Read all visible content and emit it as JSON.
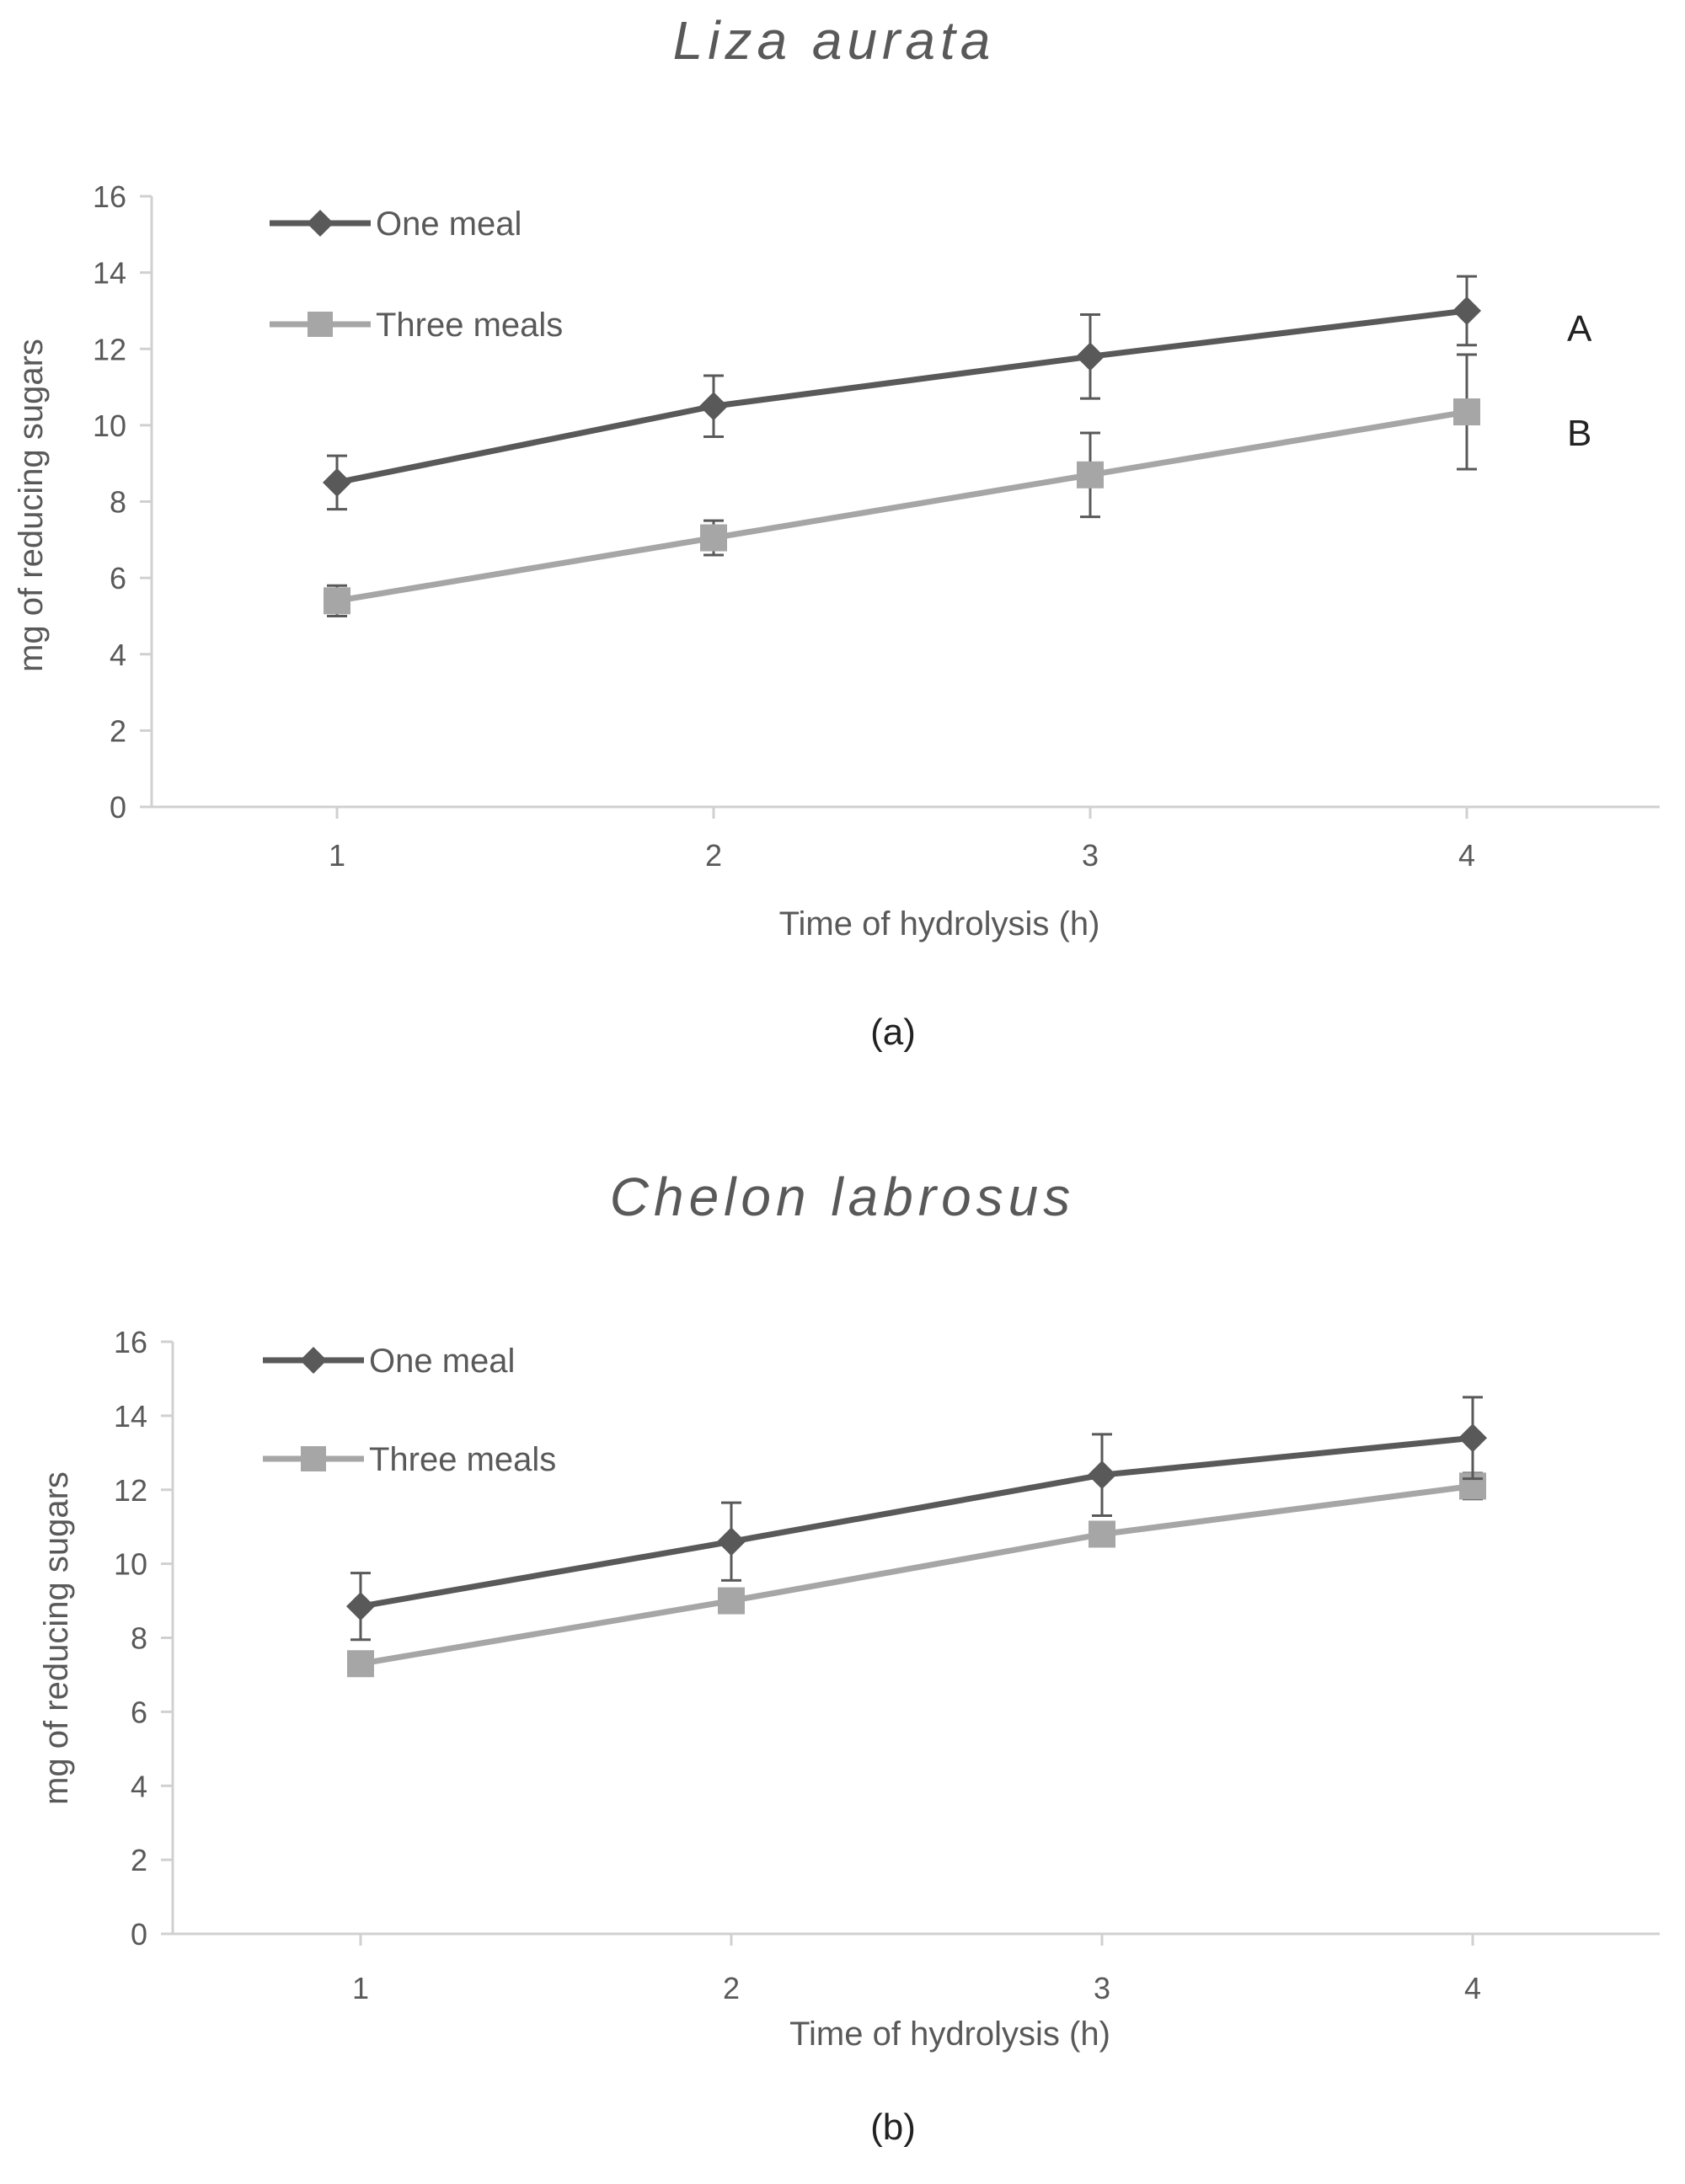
{
  "colors": {
    "one_meal": "#595959",
    "three_meals": "#a6a6a6",
    "axis": "#d0d0d0",
    "text": "#595959"
  },
  "chart_data": [
    {
      "type": "line",
      "title": "Liza aurata",
      "panel_label": "(a)",
      "xlabel": "Time of hydrolysis (h)",
      "ylabel": "mg of reducing sugars",
      "categories": [
        "1",
        "2",
        "3",
        "4"
      ],
      "ylim": [
        0,
        16
      ],
      "yticks": [
        "0",
        "2",
        "4",
        "6",
        "8",
        "10",
        "12",
        "14",
        "16"
      ],
      "legend_position": "top-left",
      "series": [
        {
          "name": "One meal",
          "marker": "diamond",
          "values": [
            8.5,
            10.5,
            11.8,
            13.0
          ],
          "errors": [
            0.7,
            0.8,
            1.1,
            0.9
          ],
          "sig_label": "A"
        },
        {
          "name": "Three meals",
          "marker": "square",
          "values": [
            5.4,
            7.05,
            8.7,
            10.35
          ],
          "errors": [
            0.4,
            0.45,
            1.1,
            1.5
          ],
          "sig_label": "B"
        }
      ]
    },
    {
      "type": "line",
      "title": "Chelon labrosus",
      "panel_label": "(b)",
      "xlabel": "Time of hydrolysis (h)",
      "ylabel": "mg of reducing sugars",
      "categories": [
        "1",
        "2",
        "3",
        "4"
      ],
      "ylim": [
        0,
        16
      ],
      "yticks": [
        "0",
        "2",
        "4",
        "6",
        "8",
        "10",
        "12",
        "14",
        "16"
      ],
      "legend_position": "top-left",
      "series": [
        {
          "name": "One meal",
          "marker": "diamond",
          "values": [
            8.85,
            10.6,
            12.4,
            13.4
          ],
          "errors": [
            0.9,
            1.05,
            1.1,
            1.1
          ],
          "sig_label": ""
        },
        {
          "name": "Three meals",
          "marker": "square",
          "values": [
            7.3,
            9.0,
            10.8,
            12.1
          ],
          "errors": [
            0.0,
            0.0,
            0.0,
            0.35
          ],
          "sig_label": ""
        }
      ]
    }
  ]
}
